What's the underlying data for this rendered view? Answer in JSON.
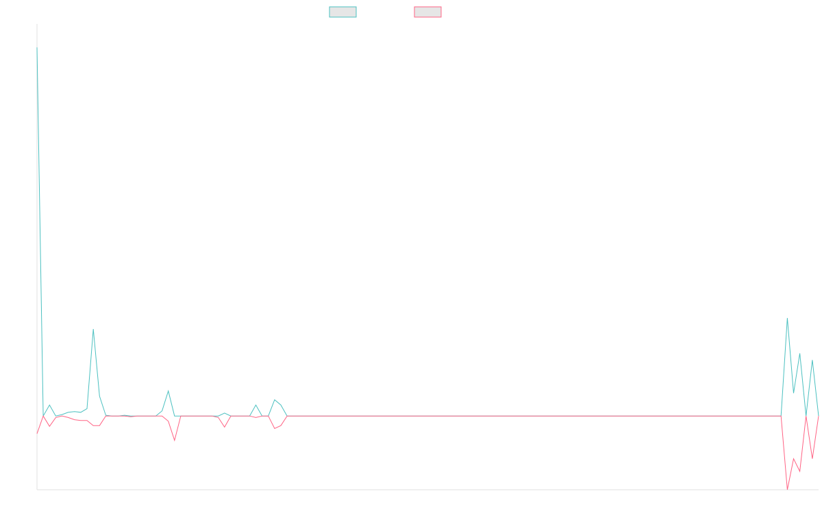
{
  "chart_data": {
    "type": "line",
    "title": "",
    "xlabel": "",
    "ylabel": "",
    "legend": {
      "placement": "top-center"
    },
    "grid": false,
    "ylim": [
      -1,
      5.3
    ],
    "colors": {
      "series_a": "#4bc0c0",
      "series_b": "#ff6384",
      "legend_fill": "#e6e6e6",
      "axis": "#e0e0e0"
    },
    "x": [
      0,
      1,
      2,
      3,
      4,
      5,
      6,
      7,
      8,
      9,
      10,
      11,
      12,
      13,
      14,
      15,
      16,
      17,
      18,
      19,
      20,
      21,
      22,
      23,
      24,
      25,
      26,
      27,
      28,
      29,
      30,
      31,
      32,
      33,
      34,
      35,
      36,
      37,
      38,
      39,
      40,
      41,
      42,
      43,
      44,
      45,
      46,
      47,
      48,
      49,
      50,
      51,
      52,
      53,
      54,
      55,
      56,
      57,
      58,
      59,
      60,
      61,
      62,
      63,
      64,
      65,
      66,
      67,
      68,
      69,
      70,
      71,
      72,
      73,
      74,
      75,
      76,
      77,
      78,
      79,
      80,
      81,
      82,
      83,
      84,
      85,
      86,
      87,
      88,
      89,
      90,
      91,
      92,
      93,
      94,
      95,
      96,
      97,
      98,
      99,
      100,
      101,
      102,
      103,
      104,
      105,
      106,
      107,
      108,
      109,
      110,
      111,
      112,
      113,
      114,
      115,
      116,
      117,
      118,
      119,
      120,
      121,
      122,
      123,
      124,
      125
    ],
    "series": [
      {
        "values": [
          5.0,
          0.0,
          0.15,
          0.0,
          0.02,
          0.05,
          0.06,
          0.05,
          0.1,
          1.18,
          0.27,
          0.01,
          0.0,
          0.0,
          0.01,
          0.0,
          0.0,
          0.0,
          0.0,
          0.0,
          0.07,
          0.34,
          0.0,
          0.0,
          0.0,
          0.0,
          0.0,
          0.0,
          0.0,
          0.0,
          0.04,
          0.0,
          0.0,
          0.0,
          0.0,
          0.15,
          0.0,
          0.0,
          0.22,
          0.15,
          0.0,
          0.0,
          0.0,
          0.0,
          0.0,
          0.0,
          0.0,
          0.0,
          0.0,
          0.0,
          0.0,
          0.0,
          0.0,
          0.0,
          0.0,
          0.0,
          0.0,
          0.0,
          0.0,
          0.0,
          0.0,
          0.0,
          0.0,
          0.0,
          0.0,
          0.0,
          0.0,
          0.0,
          0.0,
          0.0,
          0.0,
          0.0,
          0.0,
          0.0,
          0.0,
          0.0,
          0.0,
          0.0,
          0.0,
          0.0,
          0.0,
          0.0,
          0.0,
          0.0,
          0.0,
          0.0,
          0.0,
          0.0,
          0.0,
          0.0,
          0.0,
          0.0,
          0.0,
          0.0,
          0.0,
          0.0,
          0.0,
          0.0,
          0.0,
          0.0,
          0.0,
          0.0,
          0.0,
          0.0,
          0.0,
          0.0,
          0.0,
          0.0,
          0.0,
          0.0,
          0.0,
          0.0,
          0.0,
          0.0,
          0.0,
          0.0,
          0.0,
          0.0,
          0.0,
          0.0,
          1.33,
          0.31,
          0.85,
          0.0,
          0.76,
          0.0
        ]
      },
      {
        "values": [
          -0.24,
          0.0,
          -0.14,
          -0.02,
          0.0,
          -0.02,
          -0.05,
          -0.06,
          -0.06,
          -0.13,
          -0.13,
          0.0,
          0.0,
          0.0,
          0.0,
          -0.01,
          0.0,
          0.0,
          0.0,
          0.0,
          0.0,
          -0.07,
          -0.33,
          0.0,
          0.0,
          0.0,
          0.0,
          0.0,
          0.0,
          -0.02,
          -0.15,
          0.0,
          0.0,
          0.0,
          0.0,
          -0.02,
          0.0,
          0.0,
          -0.17,
          -0.13,
          0.0,
          0.0,
          0.0,
          0.0,
          0.0,
          0.0,
          0.0,
          0.0,
          0.0,
          0.0,
          0.0,
          0.0,
          0.0,
          0.0,
          0.0,
          0.0,
          0.0,
          0.0,
          0.0,
          0.0,
          0.0,
          0.0,
          0.0,
          0.0,
          0.0,
          0.0,
          0.0,
          0.0,
          0.0,
          0.0,
          0.0,
          0.0,
          0.0,
          0.0,
          0.0,
          0.0,
          0.0,
          0.0,
          0.0,
          0.0,
          0.0,
          0.0,
          0.0,
          0.0,
          0.0,
          0.0,
          0.0,
          0.0,
          0.0,
          0.0,
          0.0,
          0.0,
          0.0,
          0.0,
          0.0,
          0.0,
          0.0,
          0.0,
          0.0,
          0.0,
          0.0,
          0.0,
          0.0,
          0.0,
          0.0,
          0.0,
          0.0,
          0.0,
          0.0,
          0.0,
          0.0,
          0.0,
          0.0,
          0.0,
          0.0,
          0.0,
          0.0,
          0.0,
          0.0,
          0.0,
          -1.0,
          -0.58,
          -0.75,
          0.0,
          -0.58,
          0.0
        ]
      }
    ]
  }
}
